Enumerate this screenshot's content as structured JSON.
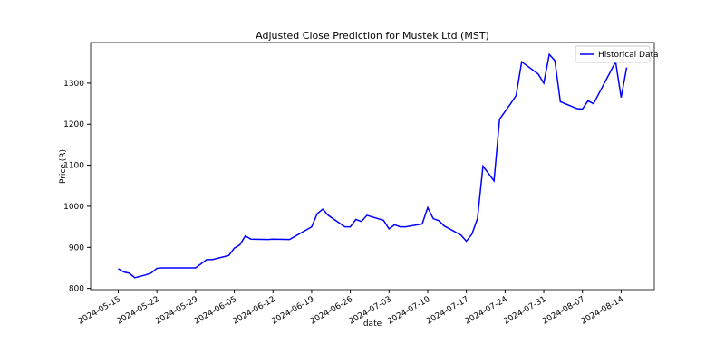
{
  "chart_data": {
    "type": "line",
    "title": "Adjusted Close Prediction for Mustek Ltd (MST)",
    "x_label": "date",
    "y_label": "Price (R)",
    "x": [
      "2024-05-15",
      "2024-05-16",
      "2024-05-17",
      "2024-05-18",
      "2024-05-20",
      "2024-05-21",
      "2024-05-22",
      "2024-05-23",
      "2024-05-29",
      "2024-05-31",
      "2024-06-01",
      "2024-06-04",
      "2024-06-05",
      "2024-06-06",
      "2024-06-07",
      "2024-06-08",
      "2024-06-11",
      "2024-06-12",
      "2024-06-15",
      "2024-06-19",
      "2024-06-20",
      "2024-06-21",
      "2024-06-22",
      "2024-06-25",
      "2024-06-26",
      "2024-06-27",
      "2024-06-28",
      "2024-06-29",
      "2024-07-02",
      "2024-07-03",
      "2024-07-04",
      "2024-07-05",
      "2024-07-06",
      "2024-07-09",
      "2024-07-10",
      "2024-07-11",
      "2024-07-12",
      "2024-07-13",
      "2024-07-16",
      "2024-07-17",
      "2024-07-18",
      "2024-07-19",
      "2024-07-20",
      "2024-07-22",
      "2024-07-23",
      "2024-07-25",
      "2024-07-26",
      "2024-07-27",
      "2024-07-30",
      "2024-07-31",
      "2024-08-01",
      "2024-08-02",
      "2024-08-03",
      "2024-08-06",
      "2024-08-07",
      "2024-08-08",
      "2024-08-09",
      "2024-08-13",
      "2024-08-14",
      "2024-08-15"
    ],
    "series": [
      {
        "name": "Historical Data",
        "color": "#0000ff",
        "values": [
          848,
          840,
          837,
          826,
          833,
          838,
          849,
          850,
          850,
          870,
          870,
          880,
          898,
          906,
          928,
          920,
          919,
          920,
          919,
          950,
          982,
          993,
          978,
          950,
          950,
          968,
          963,
          978,
          966,
          945,
          955,
          950,
          950,
          957,
          997,
          970,
          965,
          952,
          930,
          915,
          932,
          970,
          1098,
          1062,
          1212,
          1250,
          1270,
          1352,
          1322,
          1300,
          1370,
          1355,
          1255,
          1238,
          1237,
          1257,
          1250,
          1352,
          1265,
          1338
        ]
      }
    ],
    "xlim": [
      "2024-05-10",
      "2024-08-20"
    ],
    "xticks": [
      "2024-05-15",
      "2024-05-22",
      "2024-05-29",
      "2024-06-05",
      "2024-06-12",
      "2024-06-19",
      "2024-06-26",
      "2024-07-03",
      "2024-07-10",
      "2024-07-17",
      "2024-07-24",
      "2024-07-31",
      "2024-08-07",
      "2024-08-14"
    ],
    "ylim": [
      797,
      1399
    ],
    "yticks": [
      800,
      900,
      1000,
      1100,
      1200,
      1300
    ],
    "legend": "upper right"
  }
}
